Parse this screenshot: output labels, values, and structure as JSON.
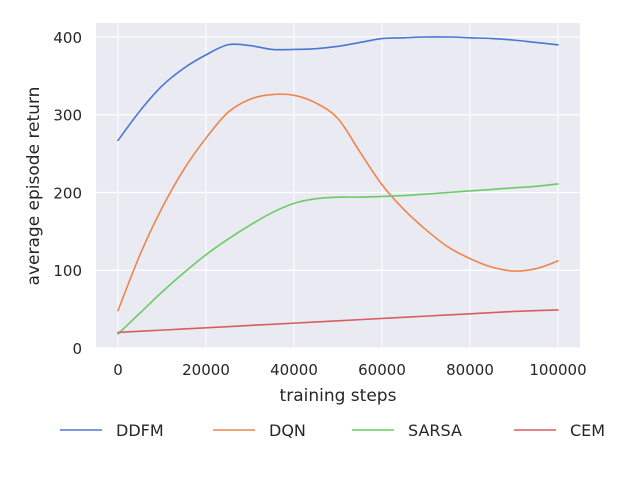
{
  "chart_data": {
    "type": "line",
    "title": "",
    "xlabel": "training steps",
    "ylabel": "average episode return",
    "xlim": [
      -5000,
      105000
    ],
    "ylim": [
      0,
      418
    ],
    "x_ticks": [
      0,
      20000,
      40000,
      60000,
      80000,
      100000
    ],
    "x_tick_labels": [
      "0",
      "20000",
      "40000",
      "60000",
      "80000",
      "100000"
    ],
    "y_ticks": [
      0,
      100,
      200,
      300,
      400
    ],
    "y_tick_labels": [
      "0",
      "100",
      "200",
      "300",
      "400"
    ],
    "grid": true,
    "legend_position": "bottom",
    "background": "#eaeaf2",
    "series": [
      {
        "name": "DDFM",
        "color": "#4878d0",
        "points": [
          [
            0,
            267
          ],
          [
            5000,
            305
          ],
          [
            10000,
            337
          ],
          [
            15000,
            360
          ],
          [
            20000,
            377
          ],
          [
            25000,
            390
          ],
          [
            30000,
            389
          ],
          [
            35000,
            384
          ],
          [
            40000,
            384
          ],
          [
            45000,
            385
          ],
          [
            50000,
            388
          ],
          [
            55000,
            393
          ],
          [
            60000,
            398
          ],
          [
            65000,
            399
          ],
          [
            70000,
            400
          ],
          [
            75000,
            400
          ],
          [
            80000,
            399
          ],
          [
            85000,
            398
          ],
          [
            90000,
            396
          ],
          [
            95000,
            393
          ],
          [
            100000,
            390
          ]
        ]
      },
      {
        "name": "DQN",
        "color": "#ee854a",
        "points": [
          [
            0,
            48
          ],
          [
            5000,
            120
          ],
          [
            10000,
            180
          ],
          [
            15000,
            230
          ],
          [
            20000,
            270
          ],
          [
            25000,
            303
          ],
          [
            30000,
            320
          ],
          [
            35000,
            326
          ],
          [
            40000,
            325
          ],
          [
            45000,
            315
          ],
          [
            50000,
            295
          ],
          [
            55000,
            252
          ],
          [
            60000,
            210
          ],
          [
            65000,
            178
          ],
          [
            70000,
            152
          ],
          [
            75000,
            130
          ],
          [
            80000,
            115
          ],
          [
            85000,
            104
          ],
          [
            90000,
            99
          ],
          [
            95000,
            102
          ],
          [
            100000,
            112
          ]
        ]
      },
      {
        "name": "SARSA",
        "color": "#6acc64",
        "points": [
          [
            0,
            18
          ],
          [
            5000,
            45
          ],
          [
            10000,
            72
          ],
          [
            15000,
            97
          ],
          [
            20000,
            120
          ],
          [
            25000,
            140
          ],
          [
            30000,
            158
          ],
          [
            35000,
            174
          ],
          [
            40000,
            186
          ],
          [
            45000,
            192
          ],
          [
            50000,
            194
          ],
          [
            55000,
            194
          ],
          [
            60000,
            195
          ],
          [
            65000,
            196
          ],
          [
            70000,
            198
          ],
          [
            75000,
            200
          ],
          [
            80000,
            202
          ],
          [
            85000,
            204
          ],
          [
            90000,
            206
          ],
          [
            95000,
            208
          ],
          [
            100000,
            211
          ]
        ]
      },
      {
        "name": "CEM",
        "color": "#d65f5f",
        "points": [
          [
            0,
            20
          ],
          [
            10000,
            23
          ],
          [
            20000,
            26
          ],
          [
            30000,
            29
          ],
          [
            40000,
            32
          ],
          [
            50000,
            35
          ],
          [
            60000,
            38
          ],
          [
            70000,
            41
          ],
          [
            80000,
            44
          ],
          [
            90000,
            47
          ],
          [
            100000,
            49
          ]
        ]
      }
    ]
  }
}
